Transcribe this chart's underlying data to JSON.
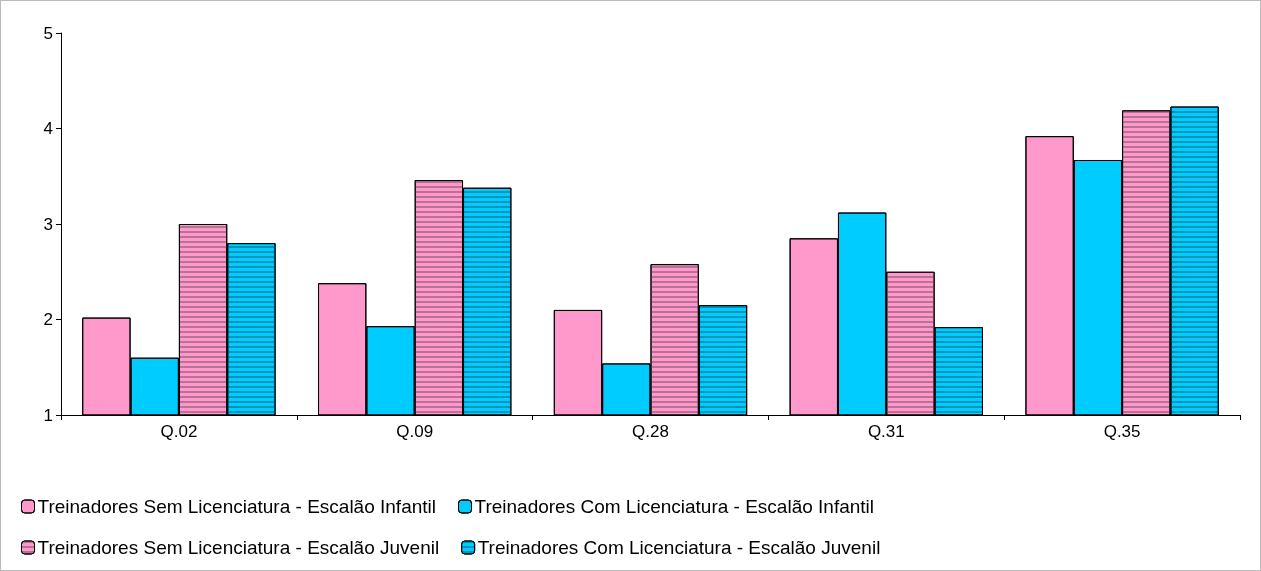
{
  "chart_data": {
    "type": "bar",
    "categories": [
      "Q.02",
      "Q.09",
      "Q.28",
      "Q.31",
      "Q.35"
    ],
    "series": [
      {
        "name": "Treinadores Sem Licenciatura - Escalão Infantil",
        "color": "#ff99cc",
        "values": [
          2.02,
          2.38,
          2.1,
          2.85,
          3.92
        ]
      },
      {
        "name": "Treinadores Com Licenciatura - Escalão Infantil",
        "color": "#00ccff",
        "values": [
          1.6,
          1.93,
          1.54,
          3.12,
          3.67
        ]
      },
      {
        "name": "Treinadores Sem Licenciatura - Escalão Juvenil",
        "color": "#ff99cc",
        "values": [
          3.0,
          3.46,
          2.58,
          2.5,
          4.19
        ]
      },
      {
        "name": "Treinadores Com Licenciatura - Escalão Juvenil",
        "color": "#00ccff",
        "values": [
          2.8,
          3.38,
          2.15,
          1.92,
          4.23
        ]
      }
    ],
    "ylim": [
      1,
      5
    ],
    "yticks": [
      1,
      2,
      3,
      4,
      5
    ],
    "grid": false,
    "legend": "bottom"
  }
}
